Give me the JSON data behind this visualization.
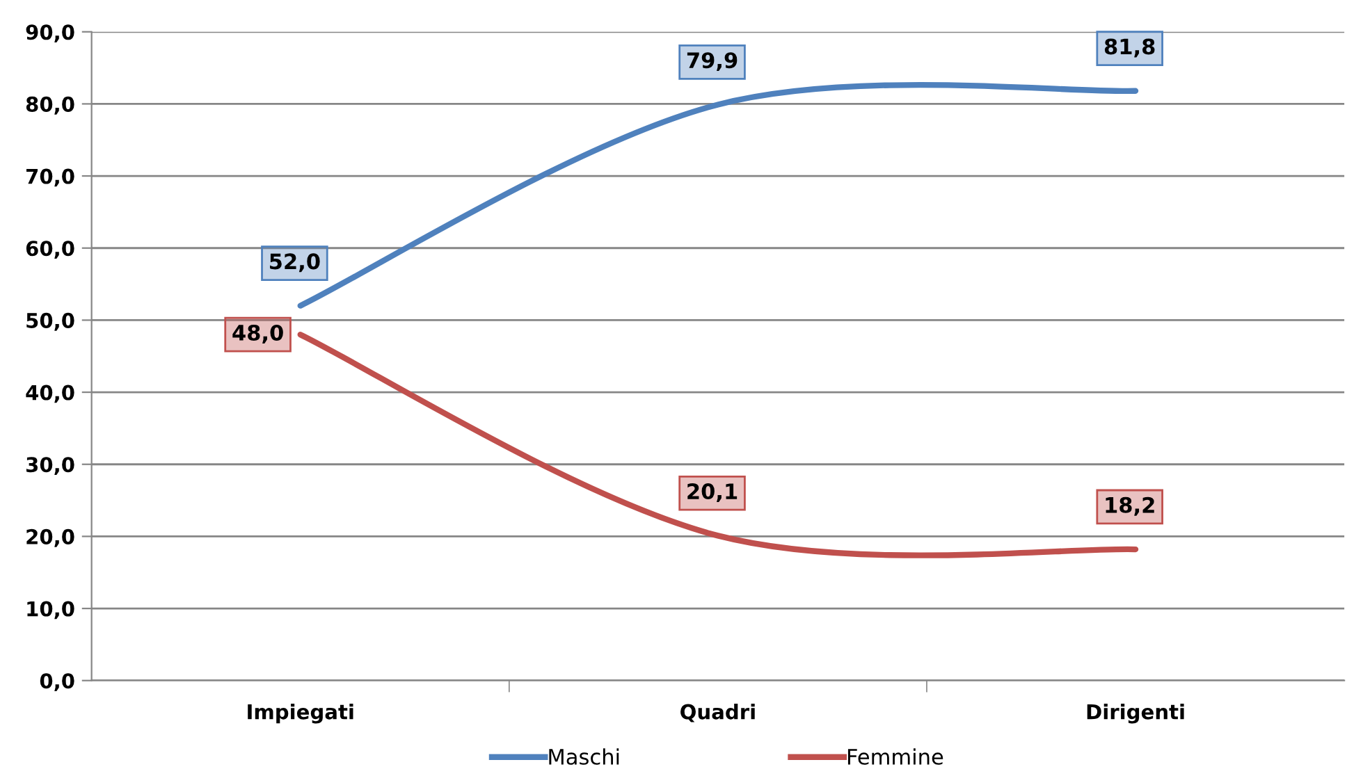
{
  "chart_data": {
    "type": "line",
    "categories": [
      "Impiegati",
      "Quadri",
      "Dirigenti"
    ],
    "series": [
      {
        "name": "Maschi",
        "color": "#4f81bd",
        "values": [
          52.0,
          79.9,
          81.8
        ],
        "value_labels": [
          "52,0",
          "79,9",
          "81,8"
        ]
      },
      {
        "name": "Femmine",
        "color": "#c0504d",
        "values": [
          48.0,
          20.1,
          18.2
        ],
        "value_labels": [
          "48,0",
          "20,1",
          "18,2"
        ]
      }
    ],
    "ylim": [
      0,
      90
    ],
    "yticks": [
      {
        "value": 0,
        "label": "0,0"
      },
      {
        "value": 10,
        "label": "10,0"
      },
      {
        "value": 20,
        "label": "20,0"
      },
      {
        "value": 30,
        "label": "30,0"
      },
      {
        "value": 40,
        "label": "40,0"
      },
      {
        "value": 50,
        "label": "50,0"
      },
      {
        "value": 60,
        "label": "60,0"
      },
      {
        "value": 70,
        "label": "70,0"
      },
      {
        "value": 80,
        "label": "80,0"
      },
      {
        "value": 90,
        "label": "90,0"
      }
    ],
    "grid": "y",
    "legend": "bottom",
    "marker": "none",
    "line_style": "solid"
  }
}
